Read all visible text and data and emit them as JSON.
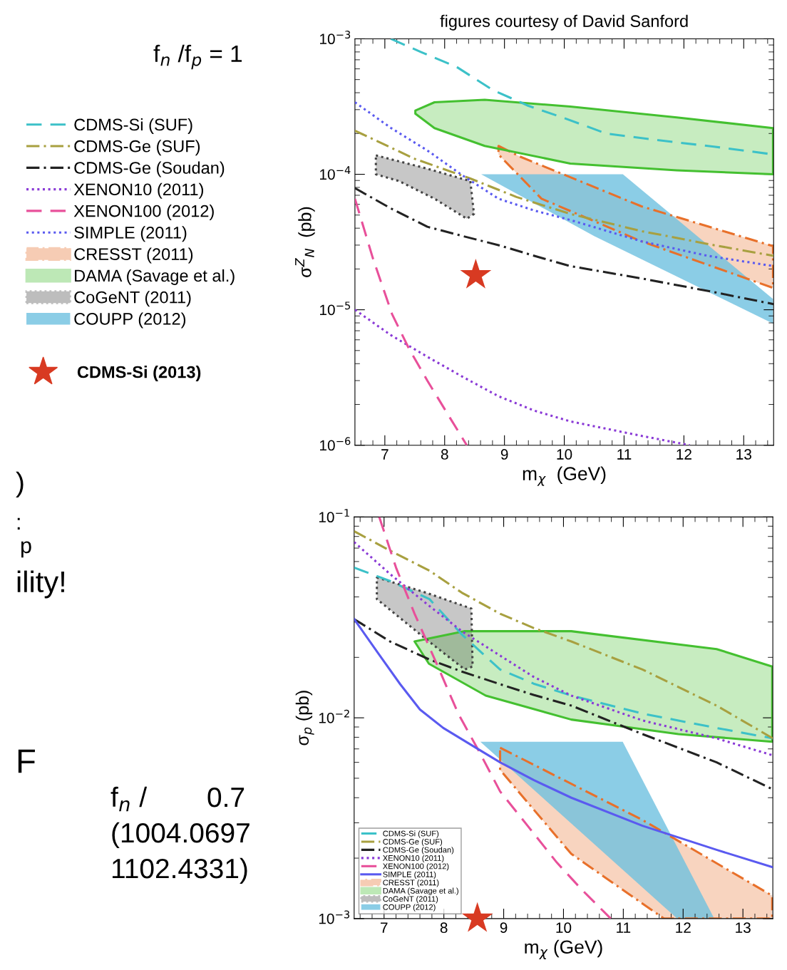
{
  "chart_data": [
    {
      "type": "line",
      "title": "figures courtesy of David Sanford",
      "xlabel": "m$_{χ}$  (GeV)",
      "ylabel": "σ$^{Z}$$_{N}$  (pb)",
      "xlim": [
        6.5,
        13.5
      ],
      "xticks": [
        7,
        8,
        9,
        10,
        11,
        12,
        13
      ],
      "ylim": [
        1e-06,
        0.001
      ],
      "log": "y",
      "yticks": [
        {
          "value": 1e-06,
          "label": "10$^{−6}$"
        },
        {
          "value": 1e-05,
          "label": "10$^{−5}$"
        },
        {
          "value": 0.0001,
          "label": "10$^{−4}$"
        },
        {
          "value": 0.001,
          "label": "10$^{−3}$"
        }
      ],
      "legend": "left",
      "annotations": [
        "f$_{n}$ /f$_{p}$ = 1"
      ],
      "series": [
        {
          "name": "CDMS-Si (SUF)",
          "color": "#3cc1c8",
          "line_style": "dashed",
          "x": [
            7.1,
            7.6,
            8.2,
            8.8,
            9.4,
            10,
            10.7,
            11.5,
            12.5,
            13.5
          ],
          "values": [
            0.001,
            0.0008,
            0.00062,
            0.00042,
            0.00032,
            0.00026,
            0.0002,
            0.00018,
            0.00016,
            0.00014
          ]
        },
        {
          "name": "CDMS-Ge (SUF)",
          "color": "#a8a040",
          "line_style": "dashdot",
          "x": [
            6.5,
            7.5,
            8.43,
            9.2,
            10.1,
            11.3,
            12.5,
            13.5
          ],
          "values": [
            0.00021,
            0.00013,
            9.3e-05,
            6.8e-05,
            5.1e-05,
            3.8e-05,
            3e-05,
            2.5e-05
          ]
        },
        {
          "name": "CDMS-Ge (Soudan)",
          "color": "#222222",
          "line_style": "dashdot",
          "x": [
            6.5,
            7.1,
            7.71,
            8.3,
            8.9,
            9.5,
            10.1,
            11.3,
            12.5,
            13.5
          ],
          "values": [
            7.9e-05,
            5.6e-05,
            4.1e-05,
            3.5e-05,
            3e-05,
            2.5e-05,
            2.1e-05,
            1.7e-05,
            1.35e-05,
            1.1e-05
          ]
        },
        {
          "name": "XENON10 (2011)",
          "color": "#8a3ad6",
          "line_style": "dotted",
          "x": [
            6.5,
            7.1,
            7.71,
            8.3,
            8.9,
            9.5,
            10.1,
            11.3,
            12.1
          ],
          "values": [
            1e-05,
            6.5e-06,
            4.5e-06,
            3.2e-06,
            2.3e-06,
            1.8e-06,
            1.5e-06,
            1.17e-06,
            1e-06
          ]
        },
        {
          "name": "XENON100 (2012)",
          "color": "#e8509a",
          "line_style": "dashed",
          "x": [
            6.5,
            6.8,
            7.12,
            7.4,
            7.71,
            8.05,
            8.37
          ],
          "values": [
            6.6e-05,
            2.4e-05,
            9.3e-06,
            5.2e-06,
            3e-06,
            1.7e-06,
            1e-06
          ]
        },
        {
          "name": "SIMPLE (2011)",
          "color": "#5a5af0",
          "line_style": "dotted",
          "x": [
            6.5,
            7.1,
            7.71,
            8.3,
            8.9,
            9.5,
            10.1,
            11.29,
            12.4,
            13.5
          ],
          "values": [
            0.00034,
            0.00022,
            0.00015,
            9.8e-05,
            6.6e-05,
            5.4e-05,
            4.6e-05,
            3.2e-05,
            2.5e-05,
            2.1e-05
          ]
        },
        {
          "name": "CRESST (2011)",
          "type": "area",
          "color": "#e8702a",
          "line_style": "dashdot",
          "x": [
            8.9,
            9.26,
            11.29,
            13.49,
            13.49,
            11.29,
            9.62,
            8.9
          ],
          "values": [
            0.000162,
            0.000135,
            5.8e-05,
            2.95e-05,
            1.45e-05,
            3.2e-05,
            6.6e-05,
            0.00014
          ]
        },
        {
          "name": "DAMA (Savage et al.)",
          "type": "area",
          "color": "#44c030",
          "line_style": "solid",
          "x": [
            7.51,
            7.83,
            8.67,
            10.1,
            11.88,
            13.49,
            13.49,
            11.88,
            10.1,
            8.67,
            7.83,
            7.51
          ],
          "values": [
            0.000295,
            0.00034,
            0.000355,
            0.000316,
            0.000263,
            0.000219,
            0.0001,
            0.000107,
            0.00012,
            0.000162,
            0.000219,
            0.00028
          ]
        },
        {
          "name": "CoGeNT (2011)",
          "type": "area",
          "color": "#444444",
          "line_style": "dotted",
          "x": [
            6.85,
            7.71,
            8.43,
            8.49,
            8.37,
            7.83,
            7.24,
            6.85
          ],
          "values": [
            0.000138,
            0.00011,
            8.9e-05,
            5.1e-05,
            4.7e-05,
            6.6e-05,
            8.9e-05,
            0.0001
          ]
        },
        {
          "name": "COUPP (2012)",
          "type": "area",
          "color": "#6ec0e0",
          "line_style": "none",
          "x": [
            8.61,
            10.98,
            13.49,
            13.49,
            10.5
          ],
          "values": [
            0.0001,
            0.0001,
            1.2e-05,
            7.9e-06,
            3.5e-05
          ]
        },
        {
          "name": "CDMS-Si (2013)",
          "type": "scatter",
          "marker": "star",
          "color": "#d83a22",
          "x": [
            8.52
          ],
          "values": [
            1.8e-05
          ]
        }
      ]
    },
    {
      "type": "line",
      "xlabel": "m$_{χ}$ (GeV)",
      "ylabel": "σ$_{p}$ (pb)",
      "xlim": [
        6.5,
        13.5
      ],
      "xticks": [
        7,
        8,
        9,
        10,
        11,
        12,
        13
      ],
      "ylim": [
        0.001,
        0.1
      ],
      "log": "y",
      "yticks": [
        {
          "value": 0.001,
          "label": "10$^{−3}$"
        },
        {
          "value": 0.01,
          "label": "10$^{−2}$"
        },
        {
          "value": 0.1,
          "label": "10$^{−1}$"
        }
      ],
      "legend": "bottom left",
      "annotations": [
        ")",
        ":",
        "p",
        "ility!",
        "F",
        "f$_{n}$ /",
        "0.7",
        "(1004.0697",
        "1102.4331)"
      ],
      "series": [
        {
          "name": "CDMS-Si (SUF)",
          "color": "#3cc1c8",
          "line_style": "dashed",
          "x": [
            6.5,
            7.1,
            7.76,
            8.3,
            8.94,
            9.5,
            10.13,
            11.32,
            12.56,
            13.5
          ],
          "values": [
            0.056,
            0.048,
            0.039,
            0.026,
            0.0174,
            0.0148,
            0.0129,
            0.0105,
            0.0089,
            0.0079
          ]
        },
        {
          "name": "CDMS-Ge (SUF)",
          "color": "#a8a040",
          "line_style": "dashdot",
          "x": [
            6.5,
            7.1,
            7.76,
            8.3,
            8.94,
            9.5,
            10.13,
            11.32,
            12.56,
            13.5
          ],
          "values": [
            0.085,
            0.068,
            0.054,
            0.042,
            0.033,
            0.028,
            0.024,
            0.0174,
            0.0115,
            0.0079
          ]
        },
        {
          "name": "CDMS-Ge (Soudan)",
          "color": "#222222",
          "line_style": "dashdot",
          "x": [
            6.5,
            7.1,
            7.76,
            8.3,
            8.94,
            9.5,
            10.13,
            11.32,
            12.56,
            13.5
          ],
          "values": [
            0.031,
            0.024,
            0.0195,
            0.017,
            0.0147,
            0.013,
            0.0115,
            0.0083,
            0.006,
            0.0044
          ]
        },
        {
          "name": "XENON10 (2011)",
          "color": "#8a3ad6",
          "line_style": "dotted",
          "x": [
            6.5,
            7.1,
            7.76,
            8.3,
            8.94,
            9.5,
            10.13,
            11.32,
            12.56,
            13.5
          ],
          "values": [
            0.075,
            0.052,
            0.036,
            0.027,
            0.0204,
            0.016,
            0.0129,
            0.0097,
            0.0079,
            0.0065
          ]
        },
        {
          "name": "XENON100 (2012)",
          "color": "#e8509a",
          "line_style": "dashed",
          "x": [
            6.92,
            7.2,
            7.51,
            7.9,
            8.24,
            8.6,
            8.94,
            9.4,
            9.89,
            10.3,
            10.79
          ],
          "values": [
            0.1,
            0.056,
            0.033,
            0.018,
            0.0105,
            0.0067,
            0.0043,
            0.0029,
            0.0019,
            0.0014,
            0.001
          ]
        },
        {
          "name": "SIMPLE (2011)",
          "color": "#5a5af0",
          "line_style": "solid",
          "x": [
            6.5,
            6.9,
            7.27,
            7.6,
            7.99,
            8.5,
            8.94,
            9.5,
            10.13,
            11.32,
            12.56,
            13.5
          ],
          "values": [
            0.031,
            0.021,
            0.0147,
            0.011,
            0.0089,
            0.0072,
            0.006,
            0.0049,
            0.004,
            0.0029,
            0.0022,
            0.0018
          ]
        },
        {
          "name": "CRESST (2011)",
          "type": "area",
          "color": "#e8702a",
          "line_style": "dashdot",
          "x": [
            8.94,
            11.32,
            13.49,
            13.49,
            11.68,
            10.13,
            8.94
          ],
          "values": [
            0.0071,
            0.0031,
            0.0013,
            0.001,
            0.001,
            0.0021,
            0.0055
          ]
        },
        {
          "name": "DAMA (Savage et al.)",
          "type": "area",
          "color": "#44c030",
          "line_style": "solid",
          "x": [
            7.51,
            8.35,
            10.13,
            12.56,
            13.49,
            13.49,
            11.92,
            10.13,
            8.7,
            7.75
          ],
          "values": [
            0.024,
            0.027,
            0.027,
            0.022,
            0.018,
            0.0076,
            0.0083,
            0.0098,
            0.0129,
            0.0186
          ]
        },
        {
          "name": "CoGeNT (2011)",
          "type": "area",
          "color": "#444444",
          "line_style": "dotted",
          "x": [
            6.88,
            7.7,
            8.46,
            8.48,
            8.35,
            7.75,
            6.88
          ],
          "values": [
            0.05,
            0.042,
            0.035,
            0.018,
            0.0174,
            0.024,
            0.039
          ]
        },
        {
          "name": "COUPP (2012)",
          "type": "area",
          "color": "#6ec0e0",
          "line_style": "none",
          "x": [
            8.61,
            10.99,
            12.52,
            11.9
          ],
          "values": [
            0.0076,
            0.0076,
            0.001,
            0.001
          ]
        },
        {
          "type": "scatter",
          "marker": "star",
          "color": "#d83a22",
          "x": [
            8.56
          ],
          "values": [
            0.001
          ]
        }
      ]
    }
  ]
}
